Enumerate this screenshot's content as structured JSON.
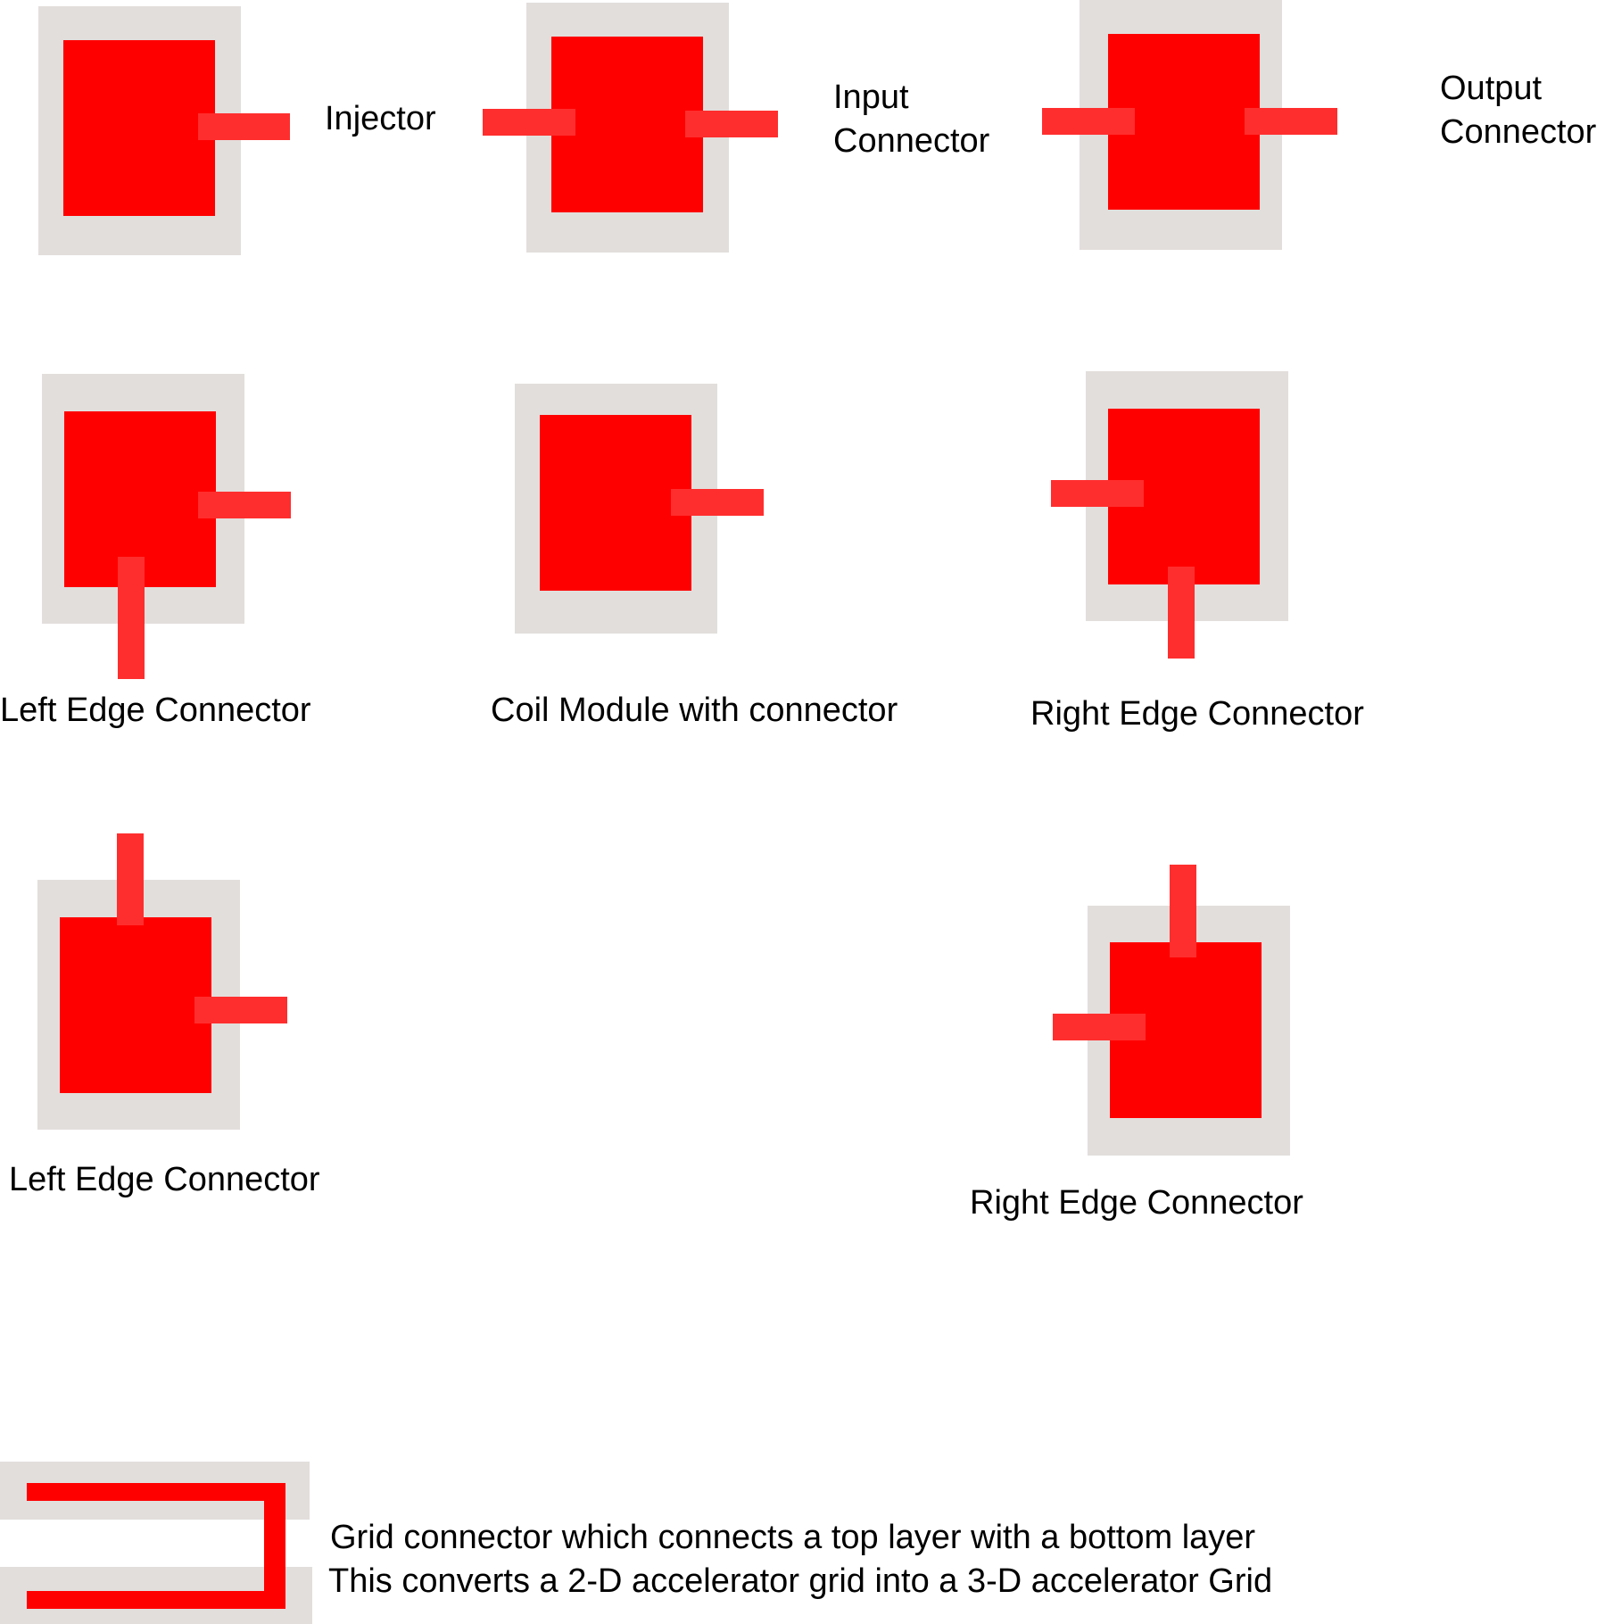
{
  "modules": {
    "injector": "Injector",
    "input_connector": "Input\nConnector",
    "output_connector": "Output\nConnector",
    "left_edge_connector_1": "Left Edge Connector",
    "coil_module": "Coil Module with connector",
    "right_edge_connector_1": "Right Edge Connector",
    "left_edge_connector_2": "Left Edge Connector",
    "right_edge_connector_2": "Right Edge Connector"
  },
  "grid_connector": {
    "line1": "Grid connector which connects a top layer with a bottom layer",
    "line2": "This converts a 2-D accelerator grid into a 3-D accelerator Grid"
  },
  "colors": {
    "frame": "#e2dedc",
    "core": "#ff0000",
    "pin": "#ff2e2e",
    "text": "#000000"
  }
}
